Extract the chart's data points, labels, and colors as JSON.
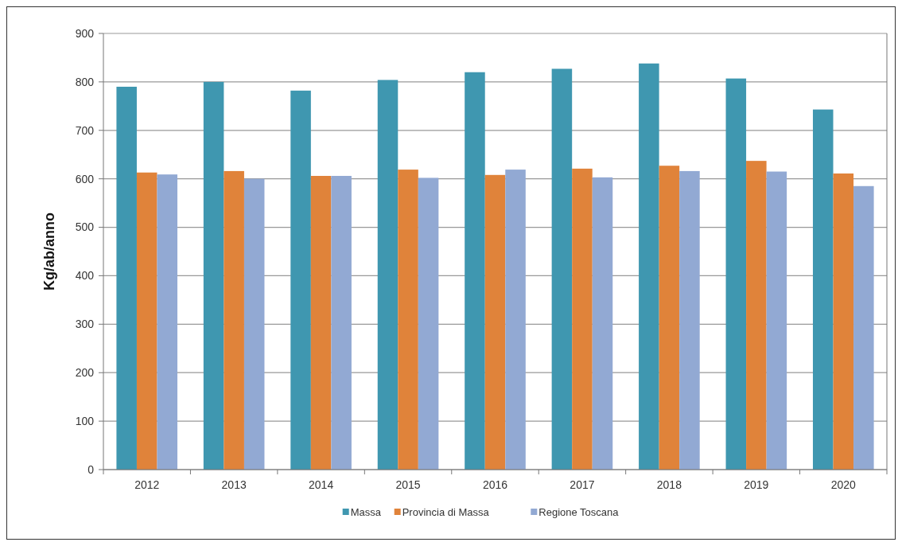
{
  "chart_data": {
    "type": "bar",
    "ylabel": "Kg/ab/anno",
    "categories": [
      "2012",
      "2013",
      "2014",
      "2015",
      "2016",
      "2017",
      "2018",
      "2019",
      "2020"
    ],
    "series": [
      {
        "name": "Massa",
        "color": "#3f97b0",
        "values": [
          790,
          800,
          782,
          804,
          820,
          827,
          838,
          807,
          743
        ]
      },
      {
        "name": "Provincia di Massa",
        "color": "#e0833a",
        "values": [
          613,
          616,
          606,
          619,
          608,
          621,
          627,
          637,
          611
        ]
      },
      {
        "name": "Regione Toscana",
        "color": "#92a9d3",
        "values": [
          609,
          600,
          606,
          602,
          619,
          603,
          616,
          615,
          585
        ]
      }
    ],
    "ylim": [
      0,
      900
    ],
    "yticks": [
      0,
      100,
      200,
      300,
      400,
      500,
      600,
      700,
      800,
      900
    ],
    "grid": "y",
    "legend": "bottom"
  }
}
